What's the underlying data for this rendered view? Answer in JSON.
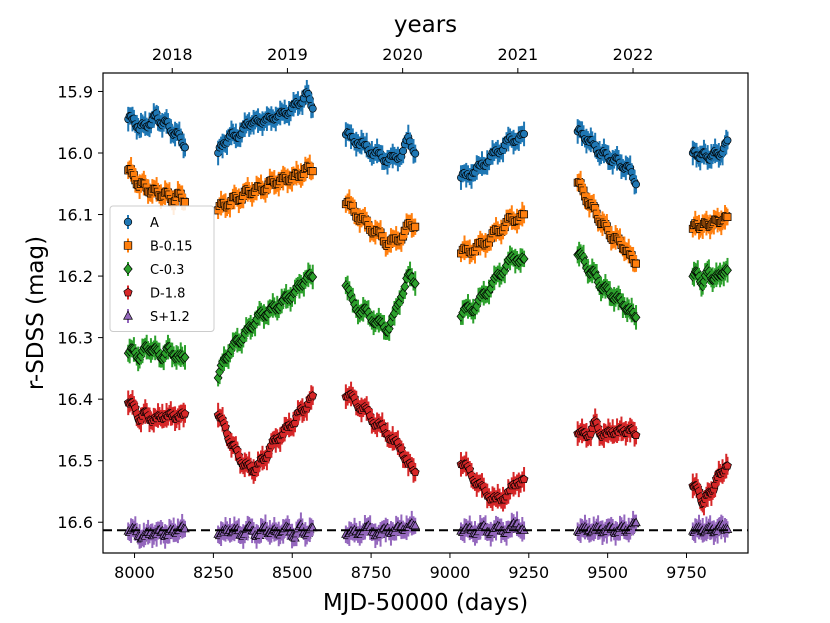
{
  "chart_data": {
    "type": "scatter",
    "title": "",
    "xlabel": "MJD-50000 (days)",
    "ylabel": "r-SDSS (mag)",
    "top_xlabel": "years",
    "xlim": [
      7900,
      9945
    ],
    "ylim": [
      16.65,
      15.87
    ],
    "y_inverted": true,
    "x_ticks": [
      "8000",
      "8250",
      "8500",
      "8750",
      "9000",
      "9250",
      "9500",
      "9750"
    ],
    "y_ticks": [
      "15.9",
      "16.0",
      "16.1",
      "16.2",
      "16.3",
      "16.4",
      "16.5",
      "16.6"
    ],
    "top_ticks": [
      "2018",
      "2019",
      "2020",
      "2021",
      "2022"
    ],
    "reference_line": {
      "y": 16.613,
      "style": "dashed"
    },
    "legend_position": "center-left",
    "grid": false,
    "series": [
      {
        "name": "A",
        "color": "#1f77b4",
        "marker": "circle",
        "segments": [
          {
            "x0": 7980,
            "x1": 8160,
            "y": [
              15.945,
              15.945,
              15.96,
              15.955,
              15.95,
              15.94,
              15.95,
              15.955,
              15.965,
              15.975,
              15.985
            ]
          },
          {
            "x0": 8265,
            "x1": 8565,
            "y": [
              16.0,
              15.985,
              15.97,
              15.975,
              15.965,
              15.955,
              15.945,
              15.955,
              15.94,
              15.95,
              15.935,
              15.94,
              15.93,
              15.925,
              15.915,
              15.905,
              15.925
            ]
          },
          {
            "x0": 8670,
            "x1": 8890,
            "y": [
              15.97,
              15.975,
              15.985,
              15.99,
              16.0,
              16.005,
              16.01,
              16.01,
              16.0,
              15.98,
              15.995
            ]
          },
          {
            "x0": 9035,
            "x1": 9235,
            "y": [
              16.04,
              16.035,
              16.03,
              16.02,
              16.01,
              16.0,
              15.99,
              15.98,
              15.975,
              15.975
            ]
          },
          {
            "x0": 9405,
            "x1": 9590,
            "y": [
              15.965,
              15.97,
              15.98,
              15.99,
              16.0,
              16.005,
              16.01,
              16.015,
              16.02,
              16.03,
              16.045
            ]
          },
          {
            "x0": 9770,
            "x1": 9880,
            "y": [
              16.0,
              16.005,
              16.0,
              16.01,
              16.0,
              16.005,
              15.995,
              15.985
            ]
          }
        ]
      },
      {
        "name": "B-0.15",
        "color": "#ff7f0e",
        "marker": "square",
        "segments": [
          {
            "x0": 7980,
            "x1": 8160,
            "y": [
              16.025,
              16.04,
              16.05,
              16.055,
              16.06,
              16.065,
              16.065,
              16.07,
              16.075,
              16.07,
              16.075
            ]
          },
          {
            "x0": 8265,
            "x1": 8565,
            "y": [
              16.09,
              16.085,
              16.08,
              16.075,
              16.07,
              16.065,
              16.06,
              16.06,
              16.055,
              16.05,
              16.045,
              16.045,
              16.04,
              16.04,
              16.035,
              16.025,
              16.03
            ]
          },
          {
            "x0": 8670,
            "x1": 8890,
            "y": [
              16.08,
              16.09,
              16.105,
              16.115,
              16.125,
              16.135,
              16.145,
              16.145,
              16.135,
              16.12,
              16.115
            ]
          },
          {
            "x0": 9035,
            "x1": 9235,
            "y": [
              16.16,
              16.16,
              16.155,
              16.15,
              16.14,
              16.13,
              16.12,
              16.11,
              16.105,
              16.105
            ]
          },
          {
            "x0": 9405,
            "x1": 9590,
            "y": [
              16.045,
              16.065,
              16.08,
              16.095,
              16.11,
              16.125,
              16.135,
              16.145,
              16.15,
              16.17,
              16.175
            ]
          },
          {
            "x0": 9770,
            "x1": 9880,
            "y": [
              16.12,
              16.12,
              16.115,
              16.12,
              16.11,
              16.115,
              16.105,
              16.11
            ]
          }
        ]
      },
      {
        "name": "C-0.3",
        "color": "#2ca02c",
        "marker": "diamond",
        "segments": [
          {
            "x0": 7980,
            "x1": 8160,
            "y": [
              16.32,
              16.325,
              16.33,
              16.32,
              16.315,
              16.325,
              16.33,
              16.32,
              16.325,
              16.335,
              16.33
            ]
          },
          {
            "x0": 8265,
            "x1": 8565,
            "y": [
              16.36,
              16.34,
              16.32,
              16.31,
              16.3,
              16.29,
              16.275,
              16.265,
              16.26,
              16.255,
              16.25,
              16.24,
              16.235,
              16.225,
              16.215,
              16.2,
              16.205
            ]
          },
          {
            "x0": 8670,
            "x1": 8890,
            "y": [
              16.21,
              16.245,
              16.255,
              16.26,
              16.27,
              16.28,
              16.285,
              16.265,
              16.23,
              16.2,
              16.21
            ]
          },
          {
            "x0": 9035,
            "x1": 9235,
            "y": [
              16.26,
              16.255,
              16.25,
              16.235,
              16.22,
              16.205,
              16.19,
              16.175,
              16.17,
              16.175
            ]
          },
          {
            "x0": 9405,
            "x1": 9590,
            "y": [
              16.16,
              16.175,
              16.19,
              16.2,
              16.215,
              16.225,
              16.23,
              16.24,
              16.245,
              16.26,
              16.265
            ]
          },
          {
            "x0": 9770,
            "x1": 9880,
            "y": [
              16.195,
              16.2,
              16.21,
              16.195,
              16.2,
              16.205,
              16.19,
              16.195
            ]
          }
        ]
      },
      {
        "name": "D-1.8",
        "color": "#d62728",
        "marker": "pentagon",
        "segments": [
          {
            "x0": 7980,
            "x1": 8160,
            "y": [
              16.4,
              16.415,
              16.43,
              16.425,
              16.43,
              16.435,
              16.425,
              16.43,
              16.425,
              16.43,
              16.425
            ]
          },
          {
            "x0": 8265,
            "x1": 8565,
            "y": [
              16.42,
              16.445,
              16.465,
              16.485,
              16.5,
              16.51,
              16.515,
              16.505,
              16.495,
              16.475,
              16.465,
              16.455,
              16.445,
              16.435,
              16.42,
              16.41,
              16.4
            ]
          },
          {
            "x0": 8670,
            "x1": 8890,
            "y": [
              16.39,
              16.4,
              16.41,
              16.42,
              16.435,
              16.445,
              16.455,
              16.47,
              16.48,
              16.505,
              16.52
            ]
          },
          {
            "x0": 9035,
            "x1": 9235,
            "y": [
              16.5,
              16.515,
              16.53,
              16.545,
              16.555,
              16.565,
              16.56,
              16.55,
              16.535,
              16.53
            ]
          },
          {
            "x0": 9405,
            "x1": 9590,
            "y": [
              16.45,
              16.46,
              16.455,
              16.44,
              16.455,
              16.46,
              16.45,
              16.455,
              16.45,
              16.45,
              16.46
            ]
          },
          {
            "x0": 9770,
            "x1": 9880,
            "y": [
              16.535,
              16.55,
              16.565,
              16.56,
              16.545,
              16.53,
              16.515,
              16.51
            ]
          }
        ]
      },
      {
        "name": "S+1.2",
        "color": "#9467bd",
        "marker": "triangle",
        "segments": [
          {
            "x0": 7980,
            "x1": 8160,
            "y": [
              16.61,
              16.615,
              16.62,
              16.625,
              16.615,
              16.62,
              16.615,
              16.62,
              16.615,
              16.61,
              16.615
            ]
          },
          {
            "x0": 8265,
            "x1": 8565,
            "y": [
              16.615,
              16.62,
              16.61,
              16.615,
              16.62,
              16.61,
              16.615,
              16.62,
              16.61,
              16.615,
              16.62,
              16.61,
              16.615,
              16.62,
              16.61,
              16.615,
              16.615
            ]
          },
          {
            "x0": 8670,
            "x1": 8890,
            "y": [
              16.615,
              16.62,
              16.615,
              16.61,
              16.615,
              16.62,
              16.61,
              16.615,
              16.61,
              16.605,
              16.61
            ]
          },
          {
            "x0": 9035,
            "x1": 9235,
            "y": [
              16.61,
              16.615,
              16.615,
              16.61,
              16.615,
              16.61,
              16.615,
              16.61,
              16.605,
              16.61
            ]
          },
          {
            "x0": 9405,
            "x1": 9590,
            "y": [
              16.61,
              16.615,
              16.61,
              16.615,
              16.61,
              16.615,
              16.61,
              16.615,
              16.61,
              16.61,
              16.605
            ]
          },
          {
            "x0": 9770,
            "x1": 9880,
            "y": [
              16.61,
              16.615,
              16.61,
              16.615,
              16.61,
              16.615,
              16.605,
              16.61
            ]
          }
        ]
      }
    ]
  }
}
